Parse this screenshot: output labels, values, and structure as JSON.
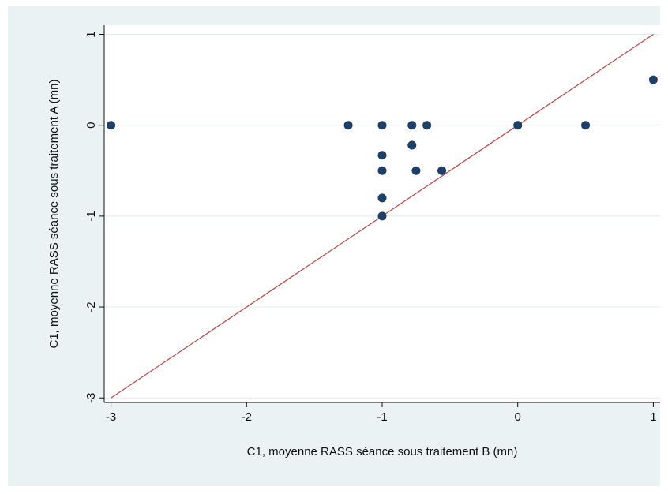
{
  "chart_data": {
    "type": "scatter",
    "xlabel": "C1, moyenne RASS séance sous traitement B (mn)",
    "ylabel": "C1, moyenne RASS séance sous traitement A (mn)",
    "xlim": [
      -3.05,
      1.05
    ],
    "ylim": [
      -3.05,
      1.1
    ],
    "xticks": [
      -3,
      -2,
      -1,
      0,
      1
    ],
    "yticks": [
      -3,
      -2,
      -1,
      0,
      1
    ],
    "xtick_labels": [
      "-3",
      "-2",
      "-1",
      "0",
      "1"
    ],
    "ytick_labels": [
      "-3",
      "-2",
      "-1",
      "0",
      "1"
    ],
    "grid": true,
    "reference_line": {
      "from": [
        -3,
        -3
      ],
      "to": [
        1,
        1
      ],
      "color": "#b5514f"
    },
    "marker_color": "#1f3f66",
    "points": [
      {
        "x": -3,
        "y": 0
      },
      {
        "x": -1.25,
        "y": 0
      },
      {
        "x": -1,
        "y": 0
      },
      {
        "x": -0.78,
        "y": 0
      },
      {
        "x": -0.67,
        "y": 0
      },
      {
        "x": -1,
        "y": -0.33
      },
      {
        "x": -0.78,
        "y": -0.22
      },
      {
        "x": -1,
        "y": -0.5
      },
      {
        "x": -0.75,
        "y": -0.5
      },
      {
        "x": -0.56,
        "y": -0.5
      },
      {
        "x": -1,
        "y": -0.8
      },
      {
        "x": -1,
        "y": -1
      },
      {
        "x": 0,
        "y": 0
      },
      {
        "x": 0.5,
        "y": 0
      },
      {
        "x": 1,
        "y": 0.5
      }
    ]
  }
}
